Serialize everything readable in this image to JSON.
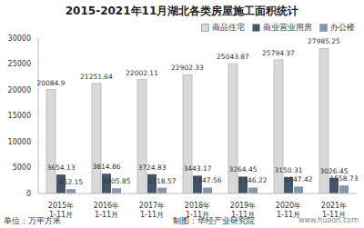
{
  "chart_data": {
    "type": "bar",
    "title": "2015-2021年11月湖北各类房屋施工面积统计",
    "categories": [
      "2015年\n1-11月",
      "2016年\n1-11月",
      "2017年\n1-11月",
      "2018年\n1-11月",
      "2019年\n1-11月",
      "2020年\n1-11月",
      "2021年\n1-11月"
    ],
    "series": [
      {
        "name": "商品住宅",
        "color": "#d9d9d9",
        "values": [
          20084.9,
          21251.64,
          22002.11,
          22902.33,
          25043.87,
          25794.37,
          27985.25
        ]
      },
      {
        "name": "商业营业用房",
        "color": "#44546a",
        "values": [
          3654.13,
          3814.86,
          3724.83,
          3443.17,
          3264.45,
          3150.31,
          3026.45
        ]
      },
      {
        "name": "办公楼",
        "color": "#8497b0",
        "values": [
          852.15,
          1005.85,
          1118.57,
          1147.56,
          1146.22,
          1347.42,
          1558.73
        ]
      }
    ],
    "ylim": [
      0,
      30000
    ],
    "yticks": [
      0,
      5000,
      10000,
      15000,
      20000,
      25000,
      30000
    ],
    "grid": false,
    "legend": "top",
    "data_labels": true,
    "annotations": [
      "单位：万平方米",
      "制图：华经产业研究院",
      "www.huaon.com"
    ]
  }
}
